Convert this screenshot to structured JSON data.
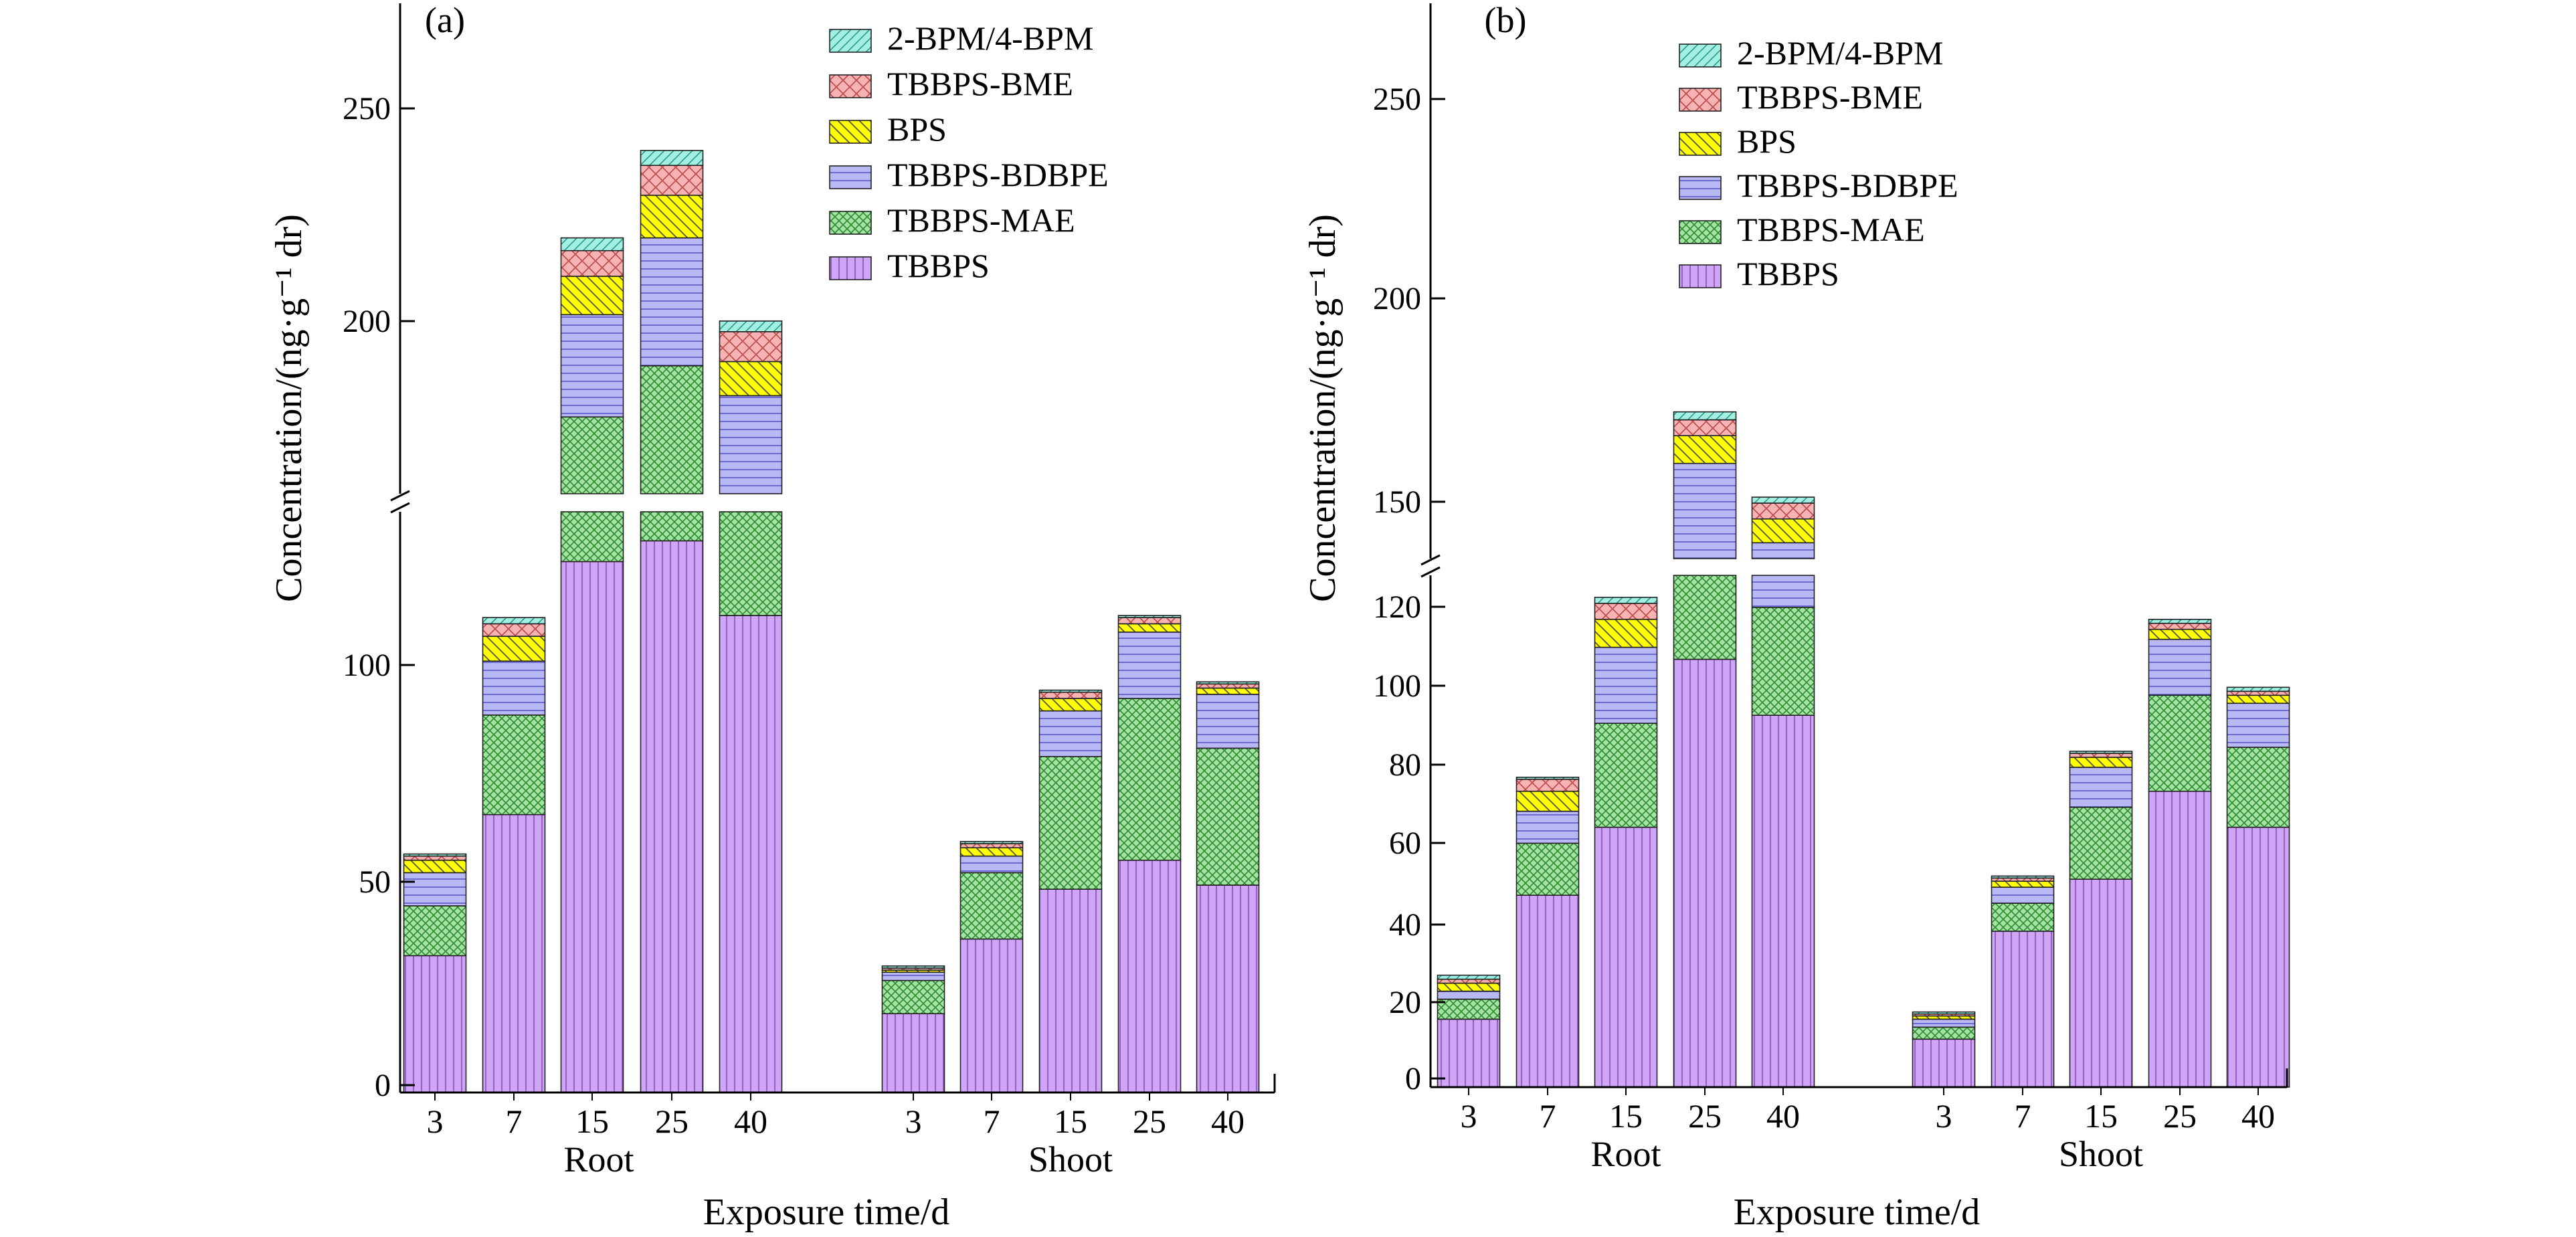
{
  "chart_data": [
    {
      "type": "bar",
      "stacked": true,
      "panel_label": "(a)",
      "ylabel": "Concentration/(ng·g⁻¹ dr)",
      "xlabel": "Exposure time/d",
      "groups": [
        "Root",
        "Shoot"
      ],
      "categories": [
        "3",
        "7",
        "15",
        "25",
        "40"
      ],
      "y_axis_break": [
        140,
        160
      ],
      "ylim": [
        0,
        275
      ],
      "y_ticks": [
        0,
        50,
        100,
        200,
        250
      ],
      "legend_position": "top-right",
      "series": [
        {
          "name": "TBBPS",
          "values": [
            [
              33,
              67,
              128,
              133,
              115
            ],
            [
              19,
              37,
              49,
              56,
              50
            ]
          ]
        },
        {
          "name": "TBBPS-MAE",
          "values": [
            [
              12,
              24,
              50,
              57,
              41
            ],
            [
              8,
              16,
              32,
              39,
              33
            ]
          ]
        },
        {
          "name": "TBBPS-BDBPE",
          "values": [
            [
              8,
              13,
              24,
              30,
              27
            ],
            [
              2,
              4,
              11,
              16,
              13
            ]
          ]
        },
        {
          "name": "BPS",
          "values": [
            [
              3,
              6,
              9,
              10,
              8
            ],
            [
              0.5,
              2,
              3,
              2,
              1.5
            ]
          ]
        },
        {
          "name": "TBBPS-BME",
          "values": [
            [
              1,
              3,
              6,
              7,
              7
            ],
            [
              0.5,
              1,
              1.5,
              1.5,
              1
            ]
          ]
        },
        {
          "name": "2-BPM/4-BPM",
          "values": [
            [
              0.5,
              1.5,
              3,
              3.5,
              2.5
            ],
            [
              0.5,
              0.5,
              0.5,
              0.5,
              0.5
            ]
          ]
        }
      ]
    },
    {
      "type": "bar",
      "stacked": true,
      "panel_label": "(b)",
      "ylabel": "Concentration/(ng·g⁻¹ dr)",
      "xlabel": "Exposure time/d",
      "groups": [
        "Root",
        "Shoot"
      ],
      "categories": [
        "3",
        "7",
        "15",
        "25",
        "40"
      ],
      "y_axis_break": [
        128,
        135
      ],
      "ylim": [
        0,
        275
      ],
      "y_ticks": [
        0,
        20,
        40,
        60,
        80,
        100,
        120,
        150,
        200,
        250
      ],
      "legend_position": "top-left",
      "series": [
        {
          "name": "TBBPS",
          "values": [
            [
              17,
              48,
              65,
              107,
              93
            ],
            [
              12,
              39,
              52,
              74,
              65
            ]
          ]
        },
        {
          "name": "TBBPS-MAE",
          "values": [
            [
              5,
              13,
              26,
              27,
              27
            ],
            [
              3,
              7,
              18,
              24,
              20
            ]
          ]
        },
        {
          "name": "TBBPS-BDBPE",
          "values": [
            [
              2,
              8,
              19,
              25,
              19
            ],
            [
              2,
              4,
              10,
              14,
              11
            ]
          ]
        },
        {
          "name": "BPS",
          "values": [
            [
              2,
              5,
              7,
              7,
              6
            ],
            [
              0.8,
              1.5,
              2.5,
              2.5,
              2
            ]
          ]
        },
        {
          "name": "TBBPS-BME",
          "values": [
            [
              1,
              3,
              4,
              4,
              4
            ],
            [
              0.5,
              0.8,
              1,
              1.5,
              1
            ]
          ]
        },
        {
          "name": "2-BPM/4-BPM",
          "values": [
            [
              1,
              0.5,
              1.5,
              2,
              1.5
            ],
            [
              0.5,
              0.5,
              0.5,
              1,
              1
            ]
          ]
        }
      ]
    }
  ],
  "colors": {
    "TBBPS": "#cfa6f7",
    "TBBPS-MAE": "#a3e3a3",
    "TBBPS-BDBPE": "#b8b8f5",
    "BPS": "#ffff00",
    "TBBPS-BME": "#f6b3b3",
    "2-BPM/4-BPM": "#a3f0e3"
  }
}
